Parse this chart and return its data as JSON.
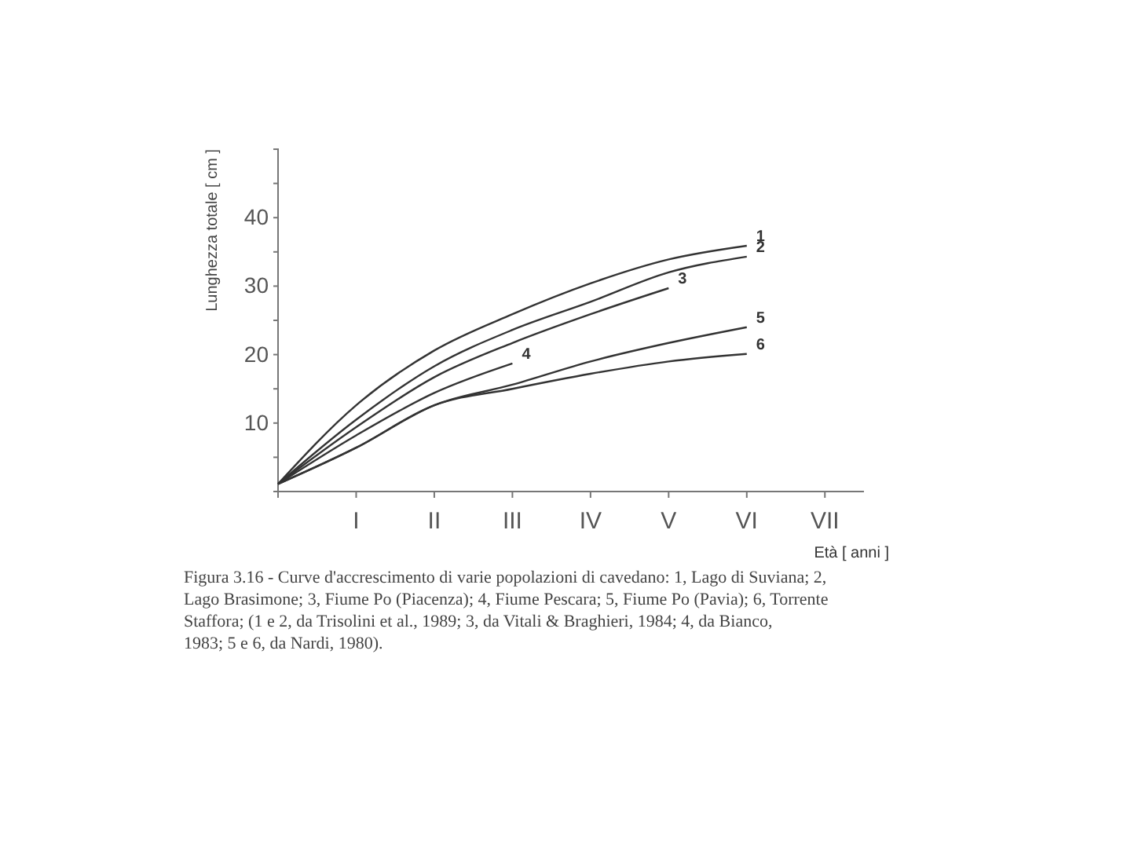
{
  "chart_data": {
    "type": "line",
    "xlabel": "Età [ anni ]",
    "ylabel": "Lunghezza totale [ cm ]",
    "categories": [
      null,
      "I",
      "II",
      "III",
      "IV",
      "V",
      "VI",
      "VII"
    ],
    "ylim": [
      0,
      50
    ],
    "yticks": [
      {
        "value": 5,
        "label": null
      },
      10,
      {
        "value": 15,
        "label": null
      },
      20,
      {
        "value": 25,
        "label": null
      },
      30,
      {
        "value": 35,
        "label": null
      },
      40,
      {
        "value": 45,
        "label": null
      }
    ],
    "grid": false,
    "marker": "none",
    "line_style": "solid",
    "legend": false,
    "series": [
      {
        "name": "1",
        "color": "#333333",
        "values": [
          1.1,
          12.6,
          20.6,
          25.9,
          30.4,
          33.9,
          35.9,
          null
        ]
      },
      {
        "name": "2",
        "color": "#333333",
        "values": [
          1.1,
          10.5,
          18.3,
          23.6,
          27.7,
          32.0,
          34.3,
          null
        ]
      },
      {
        "name": "3",
        "color": "#333333",
        "values": [
          1.1,
          9.4,
          16.7,
          21.7,
          25.9,
          29.7,
          null,
          null
        ]
      },
      {
        "name": "4",
        "color": "#333333",
        "values": [
          1.1,
          8.2,
          14.4,
          18.7,
          null,
          null,
          null,
          null
        ]
      },
      {
        "name": "5",
        "color": "#333333",
        "values": [
          1.1,
          6.4,
          12.6,
          15.6,
          19.0,
          21.7,
          24.0,
          null
        ]
      },
      {
        "name": "6",
        "color": "#333333",
        "values": [
          1.1,
          6.4,
          12.6,
          15.0,
          17.2,
          19.0,
          20.1,
          null
        ]
      }
    ],
    "annotations": [
      "Figura 3.16 - Curve d'accrescimento di varie popolazioni di cavedano: 1, Lago di Suviana; 2, Lago Brasimone; 3, Fiume Po (Piacenza); 4, Fiume Pescara; 5, Fiume Po (Pavia); 6, Torrente Staffora; (1 e 2, da Trisolini et al., 1989; 3, da Vitali & Braghieri, 1984; 4, da Bianco, 1983; 5 e 6, da Nardi, 1980)."
    ]
  }
}
